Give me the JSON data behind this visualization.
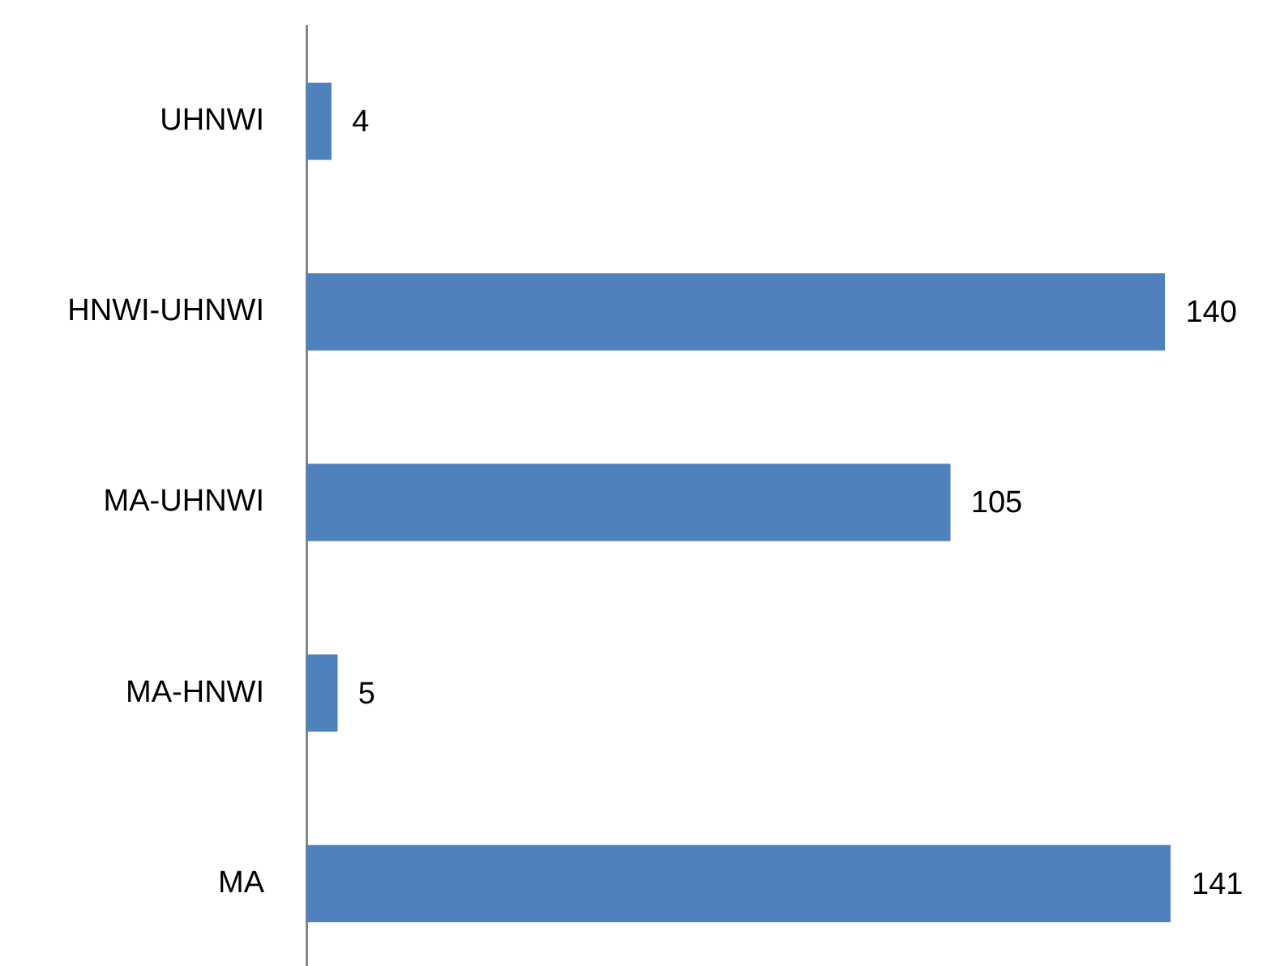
{
  "chart_data": {
    "type": "bar",
    "orientation": "horizontal",
    "categories": [
      "UHNWI",
      "HNWI-UHNWI",
      "MA-UHNWI",
      "MA-HNWI",
      "MA"
    ],
    "values": [
      4,
      140,
      105,
      5,
      141
    ],
    "color": "#4f81bd",
    "data_labels": true
  }
}
